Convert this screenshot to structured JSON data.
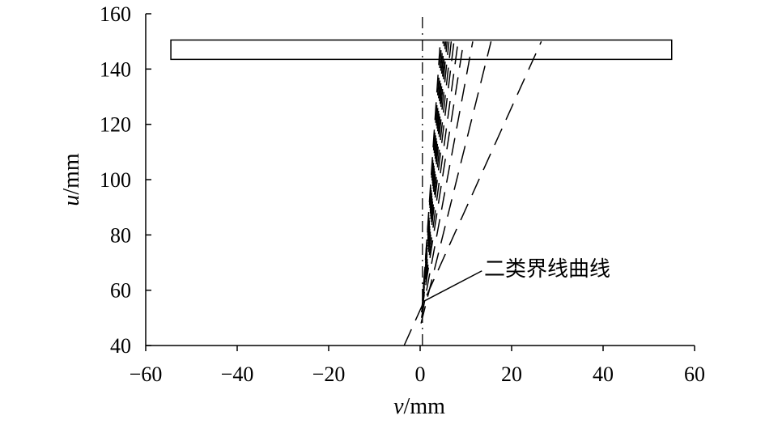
{
  "chart_data": {
    "type": "line",
    "title": "",
    "xlabel": "v/mm",
    "ylabel": "u/mm",
    "xlabel_parts": {
      "italic": "v",
      "rest": "/mm"
    },
    "ylabel_parts": {
      "italic": "u",
      "rest": "/mm"
    },
    "xlim": [
      -60,
      60
    ],
    "ylim": [
      40,
      160
    ],
    "xticks": [
      -60,
      -40,
      -20,
      0,
      20,
      40,
      60
    ],
    "yticks": [
      40,
      60,
      80,
      100,
      120,
      140,
      160
    ],
    "xtick_labels": [
      "−60",
      "−40",
      "−20",
      "0",
      "20",
      "40",
      "60"
    ],
    "ytick_labels": [
      "40",
      "60",
      "80",
      "100",
      "120",
      "140",
      "160"
    ],
    "grid": false,
    "legend": "none",
    "rectangle": {
      "x": [
        -54.5,
        55
      ],
      "y": [
        143.5,
        150.5
      ]
    },
    "centerline": {
      "x": 0.5,
      "y": [
        40,
        160
      ],
      "style": "dash-dot"
    },
    "series": [
      {
        "style": "dashed",
        "points": [
          [
            -3.5,
            40
          ],
          [
            26.5,
            150
          ]
        ]
      },
      {
        "style": "dashed",
        "points": [
          [
            0.2,
            48
          ],
          [
            15.5,
            150
          ]
        ]
      },
      {
        "style": "dashed",
        "points": [
          [
            0.3,
            50
          ],
          [
            11.5,
            150
          ]
        ]
      },
      {
        "style": "dashed",
        "points": [
          [
            0.3,
            52
          ],
          [
            9.5,
            150
          ]
        ]
      },
      {
        "style": "dashed",
        "points": [
          [
            0.4,
            53
          ],
          [
            8.3,
            150
          ]
        ]
      },
      {
        "style": "dashed",
        "points": [
          [
            0.4,
            54
          ],
          [
            7.4,
            150
          ]
        ]
      },
      {
        "style": "dashed",
        "points": [
          [
            0.5,
            55
          ],
          [
            6.8,
            150
          ]
        ]
      },
      {
        "style": "dashed",
        "points": [
          [
            0.5,
            56
          ],
          [
            6.3,
            150
          ]
        ]
      },
      {
        "style": "dashed",
        "points": [
          [
            0.6,
            57
          ],
          [
            5.9,
            150
          ]
        ]
      },
      {
        "style": "dashed",
        "points": [
          [
            0.6,
            58
          ],
          [
            5.6,
            150
          ]
        ]
      },
      {
        "style": "dashed",
        "points": [
          [
            0.7,
            59
          ],
          [
            5.3,
            150
          ]
        ]
      },
      {
        "style": "dashed",
        "points": [
          [
            0.7,
            60
          ],
          [
            5.0,
            150
          ]
        ]
      },
      {
        "style": "dashed",
        "points": [
          [
            0.7,
            61
          ],
          [
            4.7,
            150
          ]
        ]
      },
      {
        "style": "dashed",
        "points": [
          [
            0.8,
            62
          ],
          [
            4.4,
            150
          ]
        ]
      }
    ],
    "annotation": {
      "text": "二类界线曲线",
      "text_at": [
        14,
        67
      ],
      "arrow_from": [
        13.5,
        67
      ],
      "arrow_to": [
        0.8,
        56
      ]
    }
  }
}
